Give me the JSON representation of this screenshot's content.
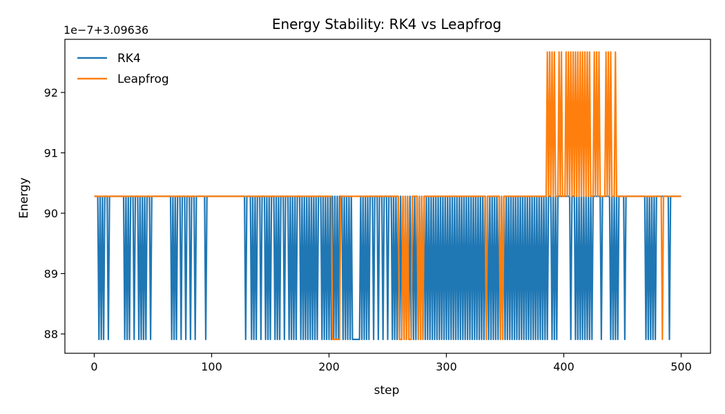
{
  "chart_data": {
    "type": "line",
    "title": "Energy Stability: RK4 vs Leapfrog",
    "xlabel": "step",
    "ylabel": "Energy",
    "offset_text": "1e−7+3.09636",
    "xlim": [
      -25,
      525
    ],
    "ylim": [
      87.68,
      92.88
    ],
    "xticks": [
      0,
      100,
      200,
      300,
      400,
      500
    ],
    "yticks": [
      88,
      89,
      90,
      91,
      92
    ],
    "grid": false,
    "legend_position": "top-left",
    "series": [
      {
        "name": "RK4",
        "color": "#1f77b4",
        "baseline": 90.28,
        "low": 87.91,
        "dip_steps": [
          4,
          6,
          8,
          12,
          26,
          28,
          30,
          34,
          38,
          40,
          42,
          44,
          48,
          66,
          68,
          70,
          74,
          78,
          82,
          86,
          95,
          129,
          134,
          136,
          138,
          142,
          146,
          148,
          150,
          154,
          156,
          158,
          162,
          166,
          168,
          170,
          172,
          176,
          178,
          180,
          182,
          184,
          186,
          188,
          190,
          194,
          196,
          198,
          200,
          202,
          204,
          206,
          208,
          212,
          214,
          216,
          218,
          220,
          221,
          222,
          223,
          224,
          225,
          226,
          228,
          230,
          232,
          234,
          238,
          242,
          246,
          250,
          254,
          256,
          258,
          260,
          262,
          264,
          266,
          268,
          270,
          272,
          274,
          276,
          278,
          280,
          282,
          284,
          286,
          288,
          290,
          292,
          294,
          296,
          298,
          300,
          302,
          304,
          306,
          308,
          310,
          312,
          314,
          316,
          318,
          320,
          322,
          324,
          326,
          328,
          330,
          332,
          334,
          336,
          338,
          340,
          342,
          344,
          346,
          348,
          350,
          352,
          354,
          356,
          358,
          360,
          362,
          364,
          366,
          368,
          370,
          372,
          374,
          376,
          378,
          380,
          382,
          384,
          386,
          390,
          392,
          394,
          406,
          410,
          412,
          414,
          416,
          418,
          420,
          422,
          424,
          432,
          440,
          442,
          444,
          446,
          452,
          470,
          472,
          474,
          476,
          478,
          490
        ]
      },
      {
        "name": "Leapfrog",
        "color": "#ff7f0e",
        "baseline": 90.28,
        "low": 87.91,
        "high": 92.67,
        "dip_steps": [
          203,
          204,
          205,
          206,
          207,
          208,
          209,
          260,
          261,
          262,
          264,
          266,
          268,
          269,
          270,
          276,
          278,
          280,
          334,
          346,
          348,
          484
        ],
        "peak_steps": [
          386,
          388,
          390,
          392,
          396,
          398,
          402,
          404,
          406,
          408,
          410,
          412,
          414,
          416,
          418,
          420,
          422,
          426,
          428,
          430,
          436,
          438,
          440,
          444
        ]
      }
    ]
  }
}
